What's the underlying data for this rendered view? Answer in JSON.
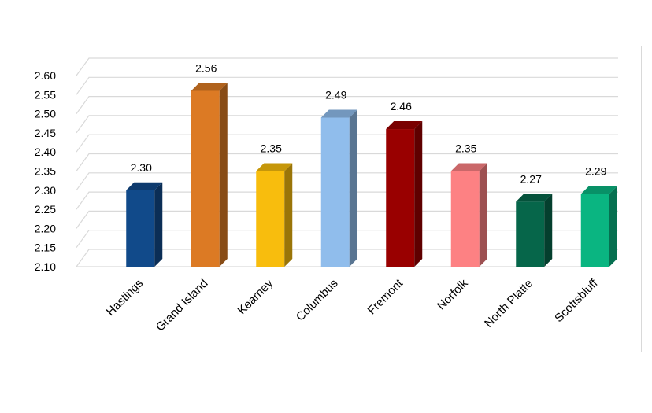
{
  "chart_data": {
    "type": "bar",
    "categories": [
      "Hastings",
      "Grand Island",
      "Kearney",
      "Columbus",
      "Fremont",
      "Norfolk",
      "North Platte",
      "Scottsbluff"
    ],
    "values": [
      2.3,
      2.56,
      2.35,
      2.49,
      2.46,
      2.35,
      2.27,
      2.29
    ],
    "data_labels": [
      "2.30",
      "2.56",
      "2.35",
      "2.49",
      "2.46",
      "2.35",
      "2.27",
      "2.29"
    ],
    "colors": [
      "#114a8a",
      "#dc7a24",
      "#f8bd0d",
      "#90bdec",
      "#990000",
      "#fd8183",
      "#06664a",
      "#0ab581"
    ],
    "title": "",
    "xlabel": "",
    "ylabel": "",
    "ylim": [
      2.1,
      2.6
    ],
    "yticks": [
      "2.10",
      "2.15",
      "2.20",
      "2.25",
      "2.30",
      "2.35",
      "2.40",
      "2.45",
      "2.50",
      "2.55",
      "2.60"
    ],
    "grid": true,
    "style": "3d-column",
    "legend": "none"
  }
}
